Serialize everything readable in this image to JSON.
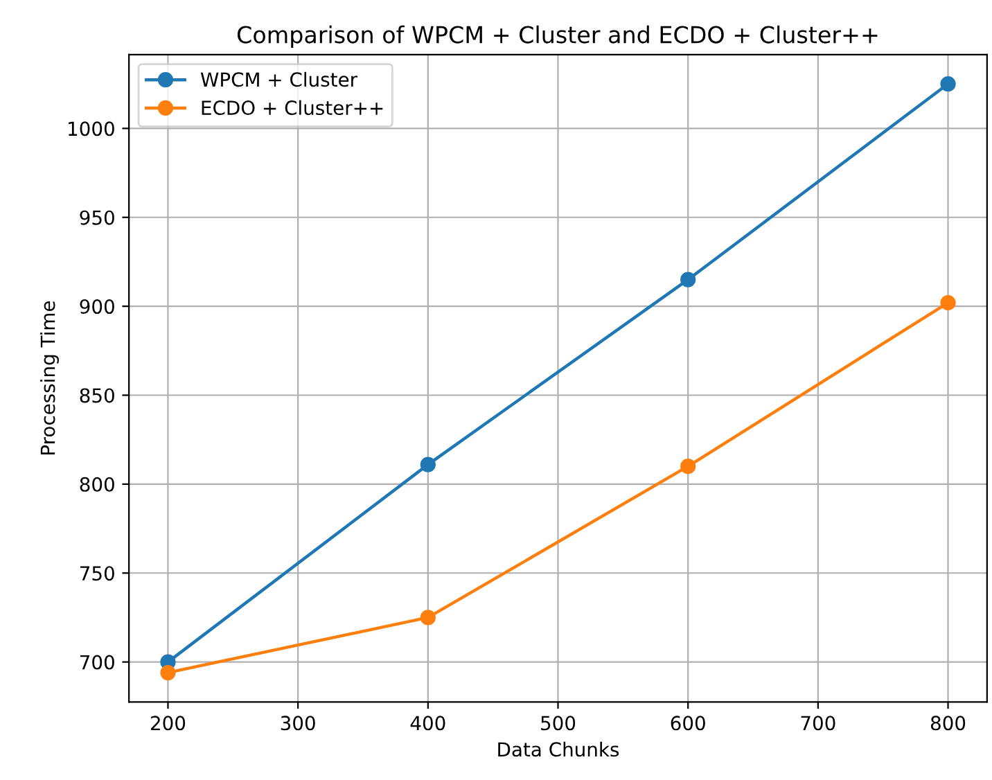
{
  "chart_data": {
    "type": "line",
    "title": "Comparison of WPCM + Cluster and ECDO + Cluster++",
    "xlabel": "Data Chunks",
    "ylabel": "Processing Time",
    "x": [
      200,
      400,
      600,
      800
    ],
    "series": [
      {
        "name": "WPCM + Cluster",
        "color": "#1f77b4",
        "values": [
          700,
          811,
          915,
          1025
        ]
      },
      {
        "name": "ECDO + Cluster++",
        "color": "#ff7f0e",
        "values": [
          694,
          725,
          810,
          902
        ]
      }
    ],
    "xlim": [
      170,
      830
    ],
    "xticks": [
      200,
      300,
      400,
      500,
      600,
      700,
      800
    ],
    "ylim": [
      677.5,
      1041.5
    ],
    "yticks": [
      700,
      750,
      800,
      850,
      900,
      950,
      1000
    ],
    "grid": true,
    "legend": "top left",
    "marker": "circle",
    "line_style": "solid"
  }
}
